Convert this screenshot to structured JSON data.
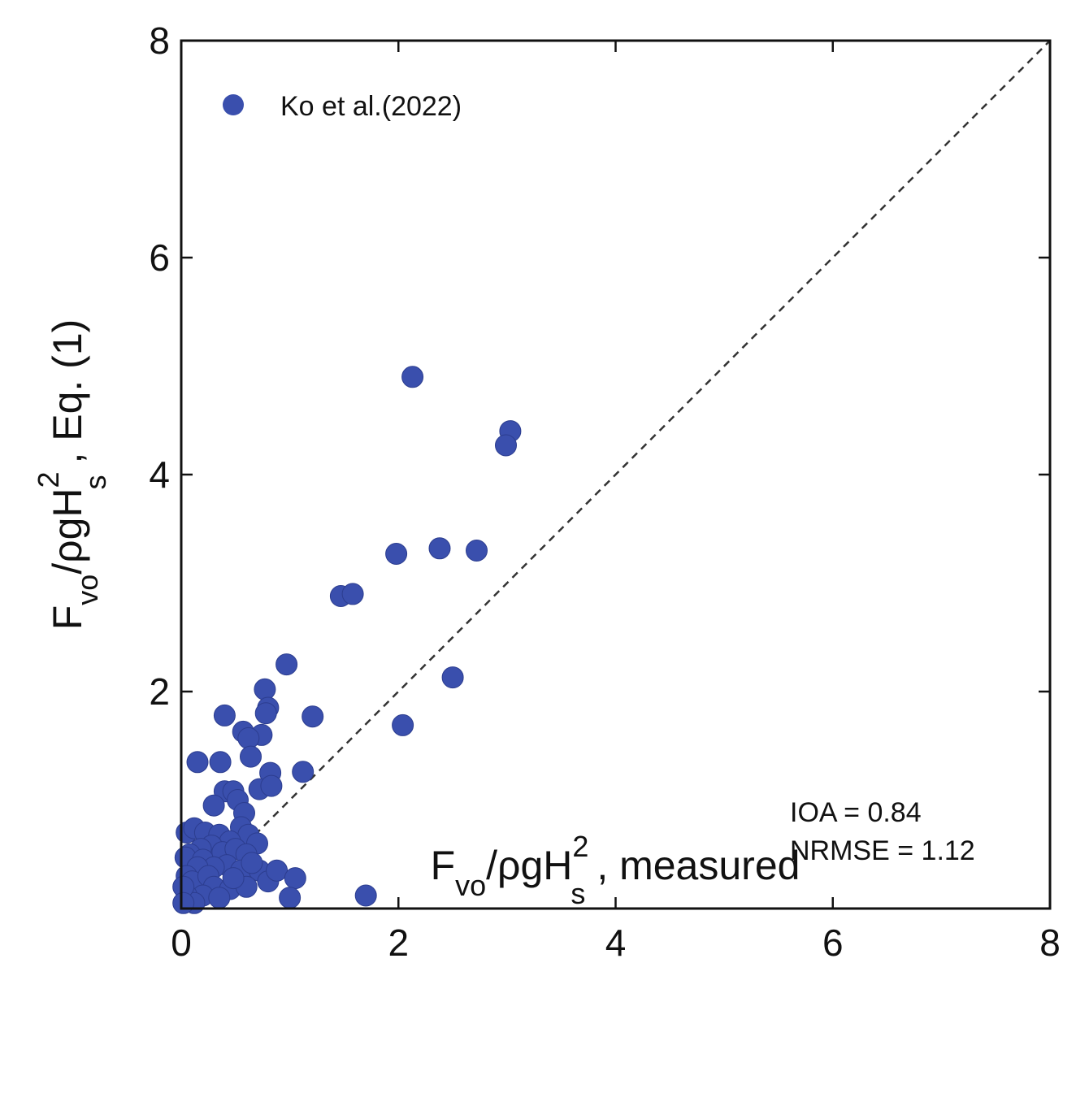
{
  "chart_data": {
    "type": "scatter",
    "xlim": [
      0,
      8
    ],
    "ylim": [
      0,
      8
    ],
    "x_ticks": [
      0,
      2,
      4,
      6,
      8
    ],
    "y_ticks": [
      2,
      4,
      6,
      8
    ],
    "x_tick_labels": [
      "0",
      "2",
      "4",
      "6",
      "8"
    ],
    "y_tick_labels": [
      "2",
      "4",
      "6",
      "8"
    ],
    "xlabel": {
      "main": "F",
      "sub1": "vo",
      "mid": "/ρgH",
      "sup": "2",
      "sub2": "s",
      "tail": " , measured"
    },
    "ylabel": {
      "main": "F",
      "sub1": "vo",
      "mid": "/ρgH",
      "sup": "2",
      "sub2": "s",
      "tail": " , Eq. (1)"
    },
    "grid": false,
    "legend_position": "top-left",
    "reference_line": {
      "style": "dashed",
      "from": [
        0,
        0
      ],
      "to": [
        8,
        8
      ]
    },
    "annotations": [
      "IOA = 0.84",
      "NRMSE = 1.12"
    ],
    "series": [
      {
        "name": "Ko et al.(2022)",
        "color": "#3a4fad",
        "points": [
          [
            2.13,
            4.9
          ],
          [
            3.03,
            4.4
          ],
          [
            2.99,
            4.27
          ],
          [
            2.38,
            3.32
          ],
          [
            2.72,
            3.3
          ],
          [
            1.98,
            3.27
          ],
          [
            1.47,
            2.88
          ],
          [
            1.58,
            2.9
          ],
          [
            0.97,
            2.25
          ],
          [
            2.5,
            2.13
          ],
          [
            0.77,
            2.02
          ],
          [
            0.8,
            1.85
          ],
          [
            0.78,
            1.8
          ],
          [
            0.4,
            1.78
          ],
          [
            1.21,
            1.77
          ],
          [
            2.04,
            1.69
          ],
          [
            0.57,
            1.63
          ],
          [
            0.74,
            1.6
          ],
          [
            0.62,
            1.57
          ],
          [
            0.64,
            1.4
          ],
          [
            0.15,
            1.35
          ],
          [
            0.36,
            1.35
          ],
          [
            1.12,
            1.26
          ],
          [
            0.82,
            1.25
          ],
          [
            0.4,
            1.08
          ],
          [
            0.48,
            1.08
          ],
          [
            0.72,
            1.1
          ],
          [
            0.83,
            1.13
          ],
          [
            0.52,
            1.0
          ],
          [
            0.3,
            0.95
          ],
          [
            0.58,
            0.88
          ],
          [
            0.55,
            0.75
          ],
          [
            0.62,
            0.68
          ],
          [
            0.05,
            0.7
          ],
          [
            0.12,
            0.74
          ],
          [
            0.22,
            0.7
          ],
          [
            0.35,
            0.68
          ],
          [
            0.45,
            0.62
          ],
          [
            0.28,
            0.58
          ],
          [
            0.18,
            0.55
          ],
          [
            0.08,
            0.5
          ],
          [
            0.04,
            0.47
          ],
          [
            0.2,
            0.45
          ],
          [
            0.38,
            0.52
          ],
          [
            0.5,
            0.55
          ],
          [
            0.7,
            0.6
          ],
          [
            0.6,
            0.5
          ],
          [
            0.42,
            0.4
          ],
          [
            0.3,
            0.38
          ],
          [
            0.15,
            0.38
          ],
          [
            0.05,
            0.3
          ],
          [
            0.1,
            0.25
          ],
          [
            0.25,
            0.3
          ],
          [
            0.55,
            0.35
          ],
          [
            0.72,
            0.35
          ],
          [
            0.8,
            0.25
          ],
          [
            0.88,
            0.35
          ],
          [
            1.05,
            0.28
          ],
          [
            0.3,
            0.2
          ],
          [
            0.45,
            0.18
          ],
          [
            0.6,
            0.2
          ],
          [
            0.2,
            0.12
          ],
          [
            0.05,
            0.12
          ],
          [
            0.12,
            0.05
          ],
          [
            0.35,
            0.1
          ],
          [
            1.0,
            0.1
          ],
          [
            1.7,
            0.12
          ],
          [
            0.02,
            0.2
          ],
          [
            0.65,
            0.42
          ],
          [
            0.48,
            0.28
          ],
          [
            0.02,
            0.05
          ]
        ]
      }
    ]
  }
}
